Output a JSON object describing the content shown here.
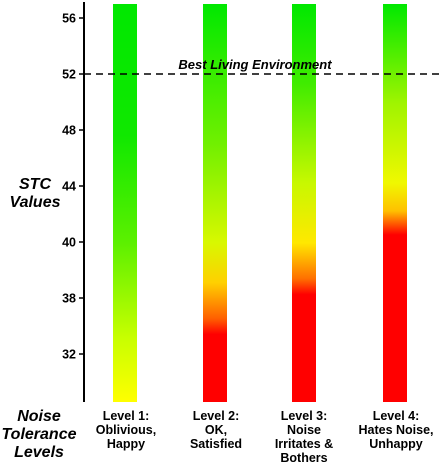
{
  "chart_data": {
    "type": "bar",
    "ylabel_lines": [
      "STC",
      "Values"
    ],
    "xlabel_lines": [
      "Noise",
      "Tolerance",
      "Levels"
    ],
    "y_ticks": [
      "56",
      "52",
      "48",
      "44",
      "40",
      "38",
      "32"
    ],
    "categories": [
      {
        "lines": [
          "Level 1:",
          "Oblivious,",
          "Happy"
        ]
      },
      {
        "lines": [
          "Level 2:",
          "OK,",
          "Satisfied"
        ]
      },
      {
        "lines": [
          "Level 3:",
          "Noise",
          "Irritates &",
          "Bothers"
        ]
      },
      {
        "lines": [
          "Level 4:",
          "Hates Noise,",
          "Unhappy"
        ]
      }
    ],
    "reference_line": {
      "value": 52,
      "label": "Best Living Environment",
      "style": "dashed"
    },
    "bar_gradients": [
      [
        {
          "at": 0,
          "color": "#00e800"
        },
        {
          "at": 0.33,
          "color": "#10e800"
        },
        {
          "at": 0.6,
          "color": "#5cf000"
        },
        {
          "at": 0.84,
          "color": "#c8ff00"
        },
        {
          "at": 1,
          "color": "#ffff00"
        }
      ],
      [
        {
          "at": 0,
          "color": "#00e800"
        },
        {
          "at": 0.35,
          "color": "#70f000"
        },
        {
          "at": 0.6,
          "color": "#d8f800"
        },
        {
          "at": 0.7,
          "color": "#ffd000"
        },
        {
          "at": 0.79,
          "color": "#ff6000"
        },
        {
          "at": 0.83,
          "color": "#ff0000"
        },
        {
          "at": 1,
          "color": "#ff0000"
        }
      ],
      [
        {
          "at": 0,
          "color": "#00e800"
        },
        {
          "at": 0.2,
          "color": "#40ec00"
        },
        {
          "at": 0.45,
          "color": "#c8f800"
        },
        {
          "at": 0.6,
          "color": "#ffe800"
        },
        {
          "at": 0.69,
          "color": "#ff7000"
        },
        {
          "at": 0.73,
          "color": "#ff0000"
        },
        {
          "at": 1,
          "color": "#ff0000"
        }
      ],
      [
        {
          "at": 0,
          "color": "#00e800"
        },
        {
          "at": 0.25,
          "color": "#a0f400"
        },
        {
          "at": 0.45,
          "color": "#f0f800"
        },
        {
          "at": 0.52,
          "color": "#ffc000"
        },
        {
          "at": 0.56,
          "color": "#ff4000"
        },
        {
          "at": 0.58,
          "color": "#ff0000"
        },
        {
          "at": 1,
          "color": "#ff0000"
        }
      ]
    ],
    "colors": {
      "axis": "#000000",
      "text": "#000000"
    }
  }
}
